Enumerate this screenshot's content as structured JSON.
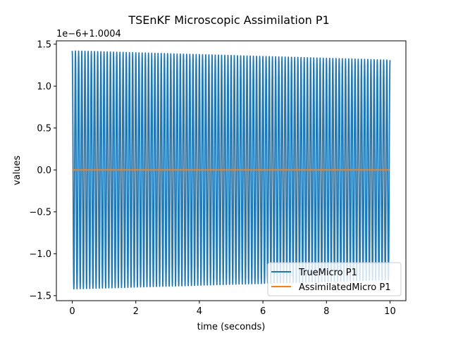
{
  "chart_data": {
    "type": "line",
    "title": "TSEnKF Microscopic Assimilation P1",
    "xlabel": "time (seconds)",
    "ylabel": "values",
    "y_offset_label": "1e−6+1.0004",
    "xlim": [
      -0.5,
      10.5
    ],
    "ylim": [
      -1.56,
      1.54
    ],
    "x_ticks": [
      0,
      2,
      4,
      6,
      8,
      10
    ],
    "x_tick_labels": [
      "0",
      "2",
      "4",
      "6",
      "8",
      "10"
    ],
    "y_ticks": [
      -1.5,
      -1.0,
      -0.5,
      0.0,
      0.5,
      1.0,
      1.5
    ],
    "y_tick_labels": [
      "−1.5",
      "−1.0",
      "−0.5",
      "0.0",
      "0.5",
      "1.0",
      "1.5"
    ],
    "grid": false,
    "legend_position": "lower-right",
    "series": [
      {
        "name": "TrueMicro P1",
        "color": "#1f77b4",
        "oscillation": {
          "x_start": 0,
          "x_end": 10,
          "cycles": 100,
          "amplitude_start": 1.42,
          "amplitude_end": 1.31
        }
      },
      {
        "name": "AssimilatedMicro P1",
        "color": "#ff7f0e",
        "x": [
          0,
          10
        ],
        "y": [
          0.0,
          0.0
        ]
      }
    ]
  }
}
